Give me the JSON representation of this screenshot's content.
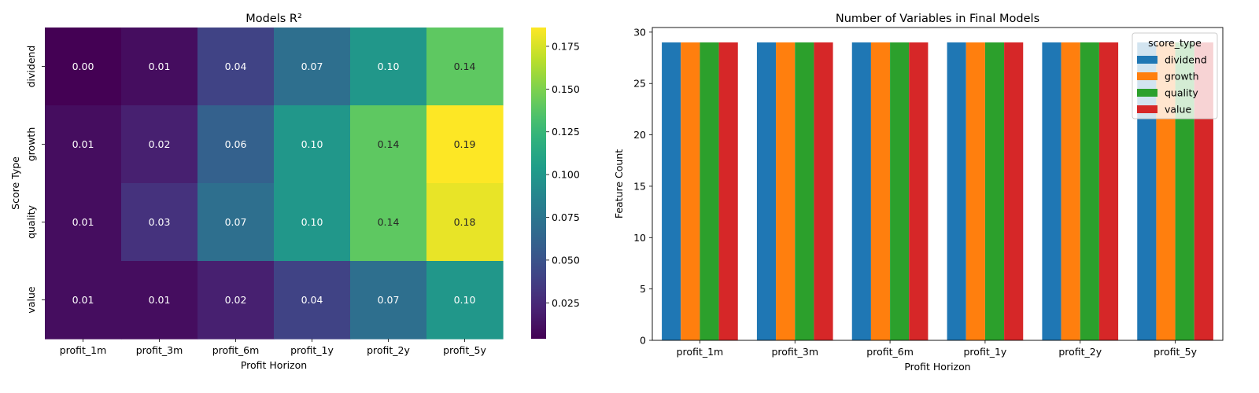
{
  "chart_data": [
    {
      "type": "heatmap",
      "title": "Models R²",
      "xlabel": "Profit Horizon",
      "ylabel": "Score Type",
      "x_categories": [
        "profit_1m",
        "profit_3m",
        "profit_6m",
        "profit_1y",
        "profit_2y",
        "profit_5y"
      ],
      "y_categories": [
        "dividend",
        "growth",
        "quality",
        "value"
      ],
      "values": [
        [
          0.0,
          0.01,
          0.04,
          0.07,
          0.1,
          0.14
        ],
        [
          0.01,
          0.02,
          0.06,
          0.1,
          0.14,
          0.19
        ],
        [
          0.01,
          0.03,
          0.07,
          0.1,
          0.14,
          0.18
        ],
        [
          0.01,
          0.01,
          0.02,
          0.04,
          0.07,
          0.1
        ]
      ],
      "cell_labels": [
        [
          "0.00",
          "0.01",
          "0.04",
          "0.07",
          "0.10",
          "0.14"
        ],
        [
          "0.01",
          "0.02",
          "0.06",
          "0.10",
          "0.14",
          "0.19"
        ],
        [
          "0.01",
          "0.03",
          "0.07",
          "0.10",
          "0.14",
          "0.18"
        ],
        [
          "0.01",
          "0.01",
          "0.02",
          "0.04",
          "0.07",
          "0.10"
        ]
      ],
      "colormap": "viridis",
      "color_range": [
        0.004,
        0.186
      ],
      "colorbar_ticks": [
        0.025,
        0.05,
        0.075,
        0.1,
        0.125,
        0.15,
        0.175
      ],
      "colorbar_tick_labels": [
        "0.025",
        "0.050",
        "0.075",
        "0.100",
        "0.125",
        "0.150",
        "0.175"
      ]
    },
    {
      "type": "bar",
      "title": "Number of Variables in Final Models",
      "xlabel": "Profit Horizon",
      "ylabel": "Feature Count",
      "categories": [
        "profit_1m",
        "profit_3m",
        "profit_6m",
        "profit_1y",
        "profit_2y",
        "profit_5y"
      ],
      "series": [
        {
          "name": "dividend",
          "color": "#1f77b4",
          "values": [
            29,
            29,
            29,
            29,
            29,
            29
          ]
        },
        {
          "name": "growth",
          "color": "#ff7f0e",
          "values": [
            29,
            29,
            29,
            29,
            29,
            29
          ]
        },
        {
          "name": "quality",
          "color": "#2ca02c",
          "values": [
            29,
            29,
            29,
            29,
            29,
            29
          ]
        },
        {
          "name": "value",
          "color": "#d62728",
          "values": [
            29,
            29,
            29,
            29,
            29,
            29
          ]
        }
      ],
      "ylim": [
        0,
        30.45
      ],
      "yticks": [
        0,
        5,
        10,
        15,
        20,
        25,
        30
      ],
      "ytick_labels": [
        "0",
        "5",
        "10",
        "15",
        "20",
        "25",
        "30"
      ],
      "legend_title": "score_type",
      "legend_position": "top-right"
    }
  ]
}
